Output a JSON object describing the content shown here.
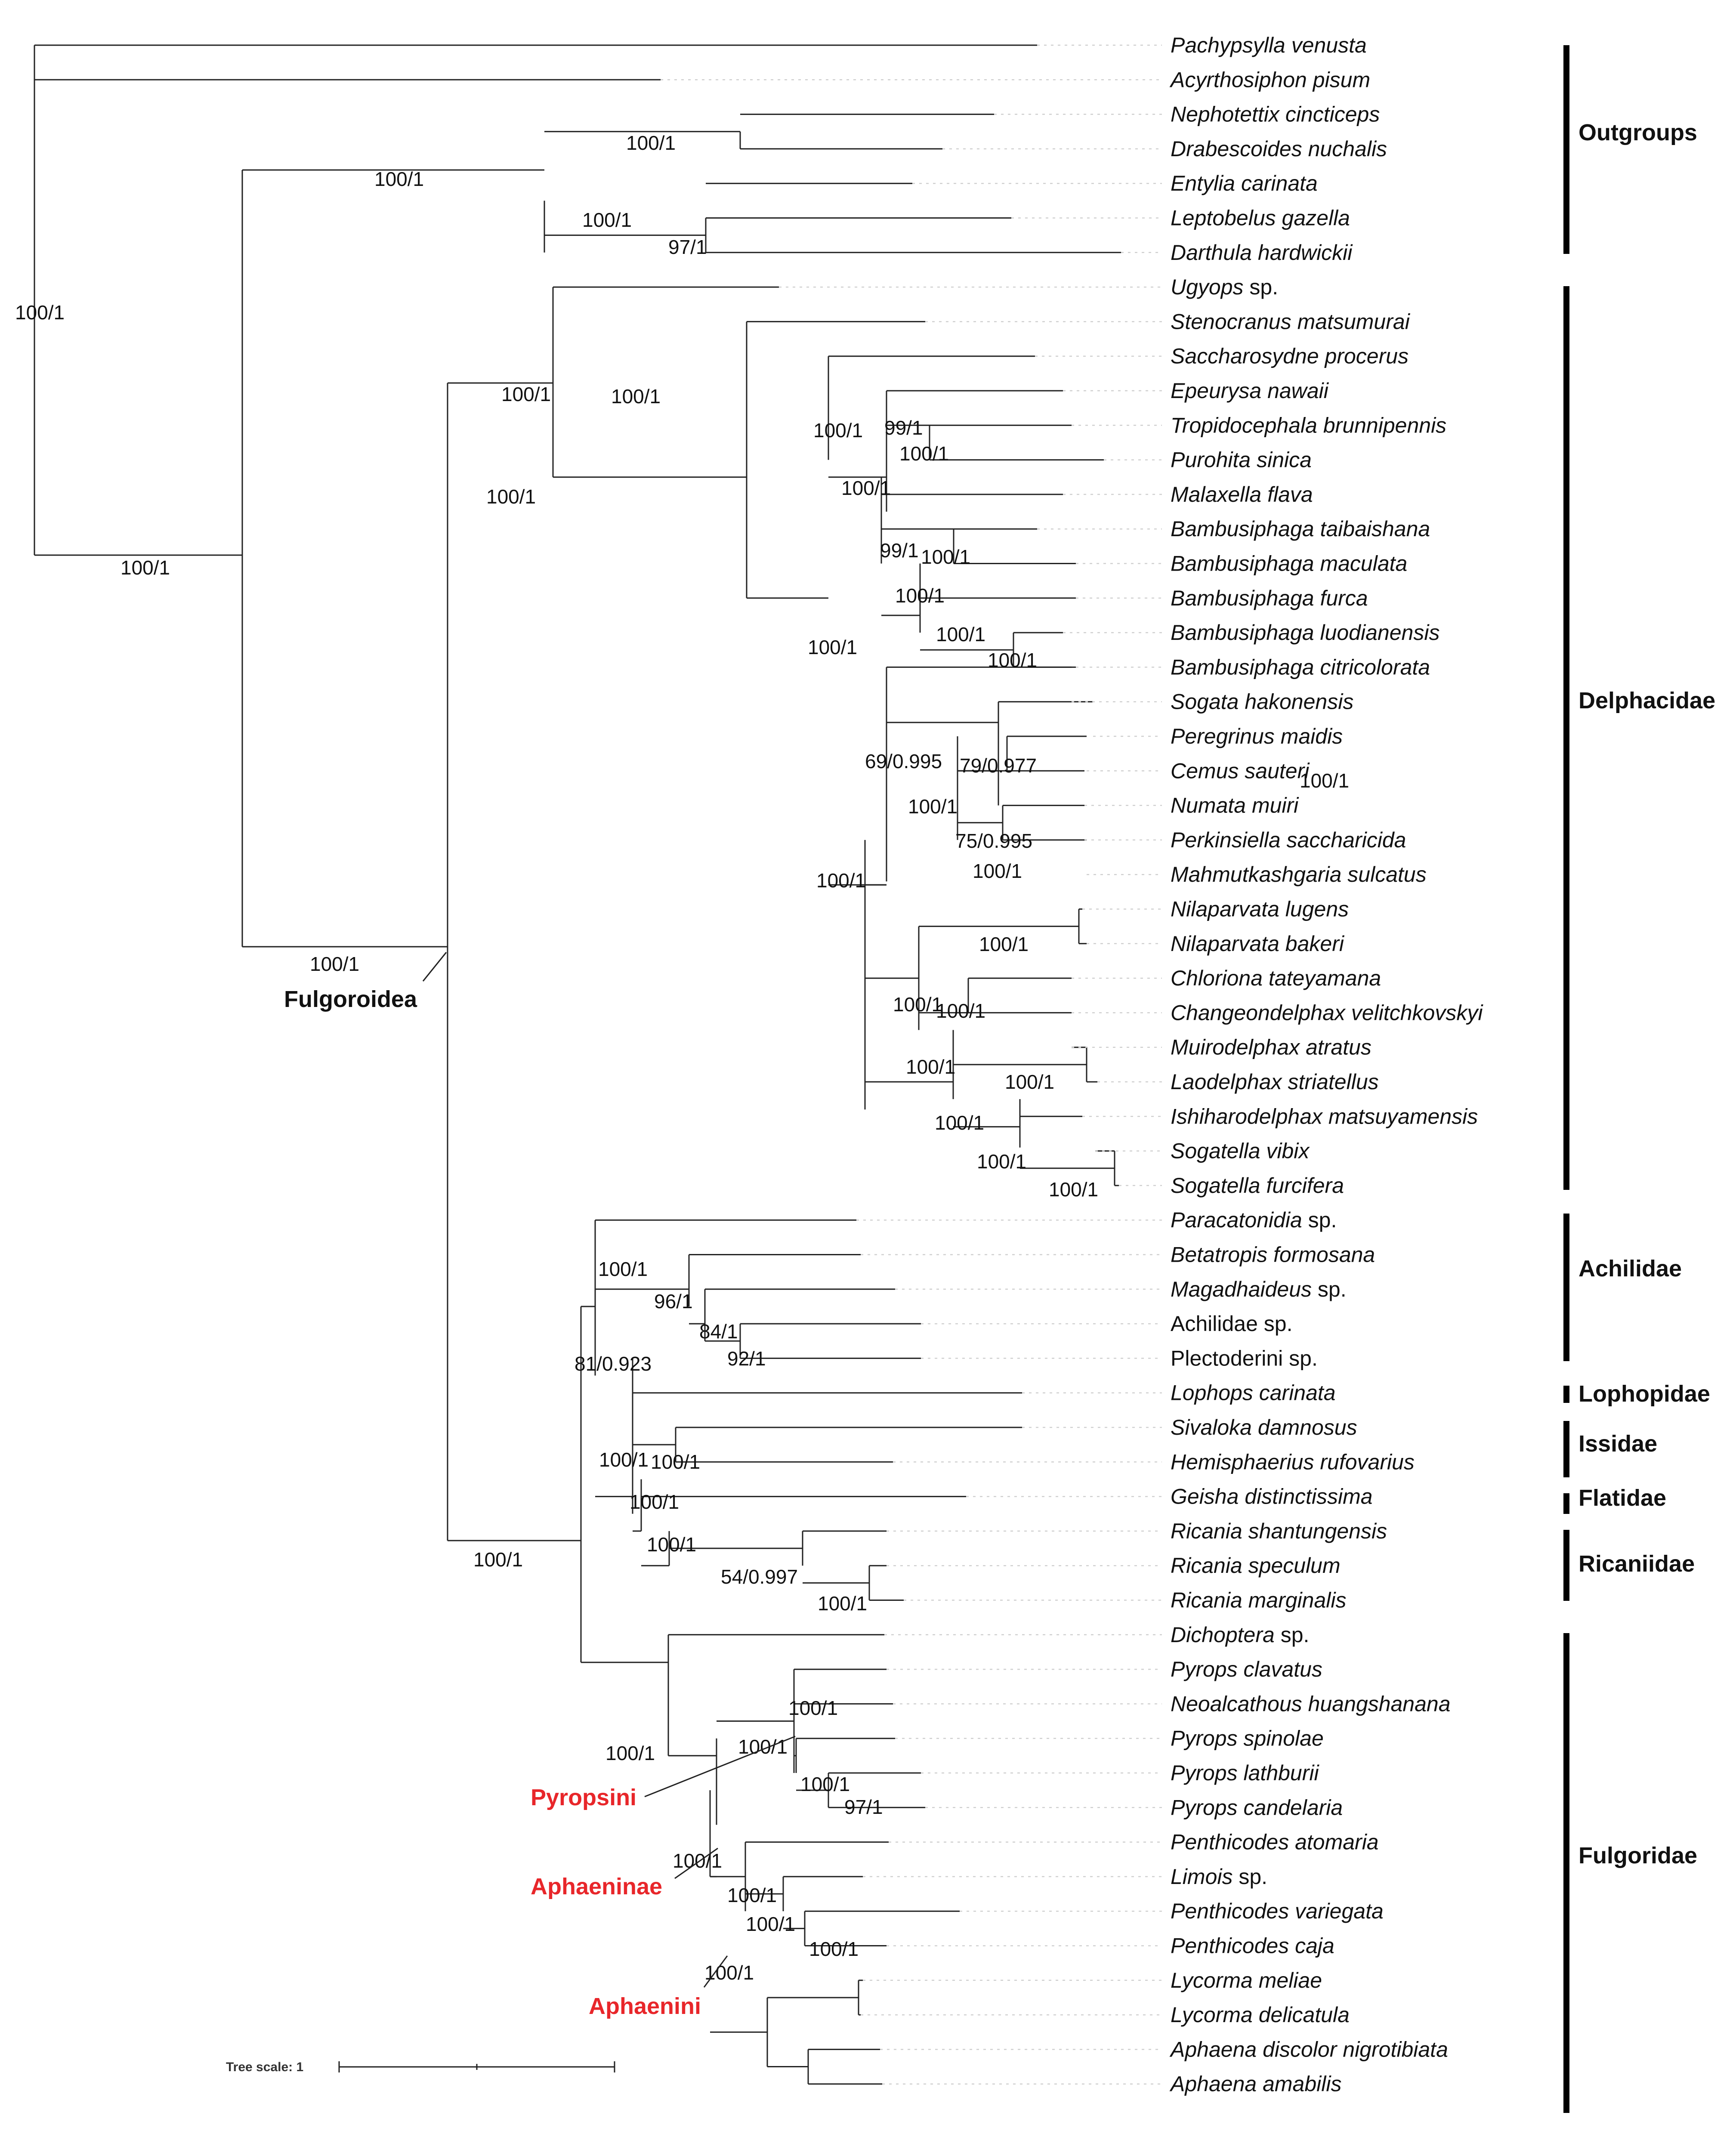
{
  "tree_scale": {
    "label": "Tree scale: 1"
  },
  "taxa": [
    {
      "genus": "Pachypsylla venusta",
      "suffix": ""
    },
    {
      "genus": "Acyrthosiphon pisum",
      "suffix": ""
    },
    {
      "genus": "Nephotettix cincticeps",
      "suffix": ""
    },
    {
      "genus": "Drabescoides nuchalis",
      "suffix": ""
    },
    {
      "genus": "Entylia carinata",
      "suffix": ""
    },
    {
      "genus": "Leptobelus gazella",
      "suffix": ""
    },
    {
      "genus": "Darthula hardwickii",
      "suffix": ""
    },
    {
      "genus": "Ugyops",
      "suffix": " sp."
    },
    {
      "genus": "Stenocranus matsumurai",
      "suffix": ""
    },
    {
      "genus": "Saccharosydne procerus",
      "suffix": ""
    },
    {
      "genus": "Epeurysa nawaii",
      "suffix": ""
    },
    {
      "genus": "Tropidocephala brunnipennis",
      "suffix": ""
    },
    {
      "genus": "Purohita sinica",
      "suffix": ""
    },
    {
      "genus": "Malaxella flava",
      "suffix": ""
    },
    {
      "genus": "Bambusiphaga taibaishana",
      "suffix": ""
    },
    {
      "genus": "Bambusiphaga maculata",
      "suffix": ""
    },
    {
      "genus": "Bambusiphaga furca",
      "suffix": ""
    },
    {
      "genus": "Bambusiphaga luodianensis",
      "suffix": ""
    },
    {
      "genus": "Bambusiphaga citricolorata",
      "suffix": ""
    },
    {
      "genus": "Sogata hakonensis",
      "suffix": ""
    },
    {
      "genus": "Peregrinus maidis",
      "suffix": ""
    },
    {
      "genus": "Cemus sauteri",
      "suffix": ""
    },
    {
      "genus": "Numata muiri",
      "suffix": ""
    },
    {
      "genus": "Perkinsiella saccharicida",
      "suffix": ""
    },
    {
      "genus": "Mahmutkashgaria sulcatus",
      "suffix": ""
    },
    {
      "genus": "Nilaparvata lugens",
      "suffix": ""
    },
    {
      "genus": "Nilaparvata bakeri",
      "suffix": ""
    },
    {
      "genus": "Chloriona tateyamana",
      "suffix": ""
    },
    {
      "genus": "Changeondelphax velitchkovskyi",
      "suffix": ""
    },
    {
      "genus": "Muirodelphax atratus",
      "suffix": ""
    },
    {
      "genus": "Laodelphax striatellus",
      "suffix": ""
    },
    {
      "genus": "Ishiharodelphax matsuyamensis",
      "suffix": ""
    },
    {
      "genus": "Sogatella vibix",
      "suffix": ""
    },
    {
      "genus": "Sogatella furcifera",
      "suffix": ""
    },
    {
      "genus": "Paracatonidia",
      "suffix": " sp."
    },
    {
      "genus": "Betatropis formosana",
      "suffix": ""
    },
    {
      "genus": "Magadhaideus",
      "suffix": " sp."
    },
    {
      "genus": "",
      "suffix": "Achilidae sp."
    },
    {
      "genus": "",
      "suffix": "Plectoderini sp."
    },
    {
      "genus": "Lophops carinata",
      "suffix": ""
    },
    {
      "genus": "Sivaloka damnosus",
      "suffix": ""
    },
    {
      "genus": "Hemisphaerius rufovarius",
      "suffix": ""
    },
    {
      "genus": "Geisha distinctissima",
      "suffix": ""
    },
    {
      "genus": "Ricania shantungensis",
      "suffix": ""
    },
    {
      "genus": "Ricania speculum",
      "suffix": ""
    },
    {
      "genus": "Ricania marginalis",
      "suffix": ""
    },
    {
      "genus": "Dichoptera",
      "suffix": " sp."
    },
    {
      "genus": "Pyrops clavatus",
      "suffix": ""
    },
    {
      "genus": "Neoalcathous huangshanana",
      "suffix": ""
    },
    {
      "genus": "Pyrops spinolae",
      "suffix": ""
    },
    {
      "genus": "Pyrops lathburii",
      "suffix": ""
    },
    {
      "genus": "Pyrops candelaria",
      "suffix": ""
    },
    {
      "genus": "Penthicodes atomaria",
      "suffix": ""
    },
    {
      "genus": "Limois",
      "suffix": " sp."
    },
    {
      "genus": "Penthicodes variegata",
      "suffix": ""
    },
    {
      "genus": "Penthicodes caja",
      "suffix": ""
    },
    {
      "genus": "Lycorma meliae",
      "suffix": ""
    },
    {
      "genus": "Lycorma delicatula",
      "suffix": ""
    },
    {
      "genus": "Aphaena discolor nigrotibiata",
      "suffix": ""
    },
    {
      "genus": "Aphaena amabilis",
      "suffix": ""
    }
  ],
  "groups": [
    "Outgroups",
    "Delphacidae",
    "Achilidae",
    "Lophopidae",
    "Issidae",
    "Flatidae",
    "Ricaniidae",
    "Fulgoridae"
  ],
  "clade_labels": {
    "fulgoroidea": "Fulgoroidea",
    "pyropsini": "Pyropsini",
    "aphaeninae": "Aphaeninae",
    "aphaenini": "Aphaenini"
  },
  "colors": {
    "highlight": "#e8262a",
    "branch": "#222222"
  },
  "supports": [
    "100/1",
    "100/1",
    "100/1",
    "100/1",
    "100/1",
    "97/1",
    "100/1",
    "100/1",
    "100/1",
    "100/1",
    "99/1",
    "100/1",
    "100/1",
    "99/1",
    "100/1",
    "100/1",
    "100/1",
    "100/1",
    "100/1",
    "69/0.995",
    "79/0.977",
    "100/1",
    "75/0.995",
    "100/1",
    "100/1",
    "100/1",
    "100/1",
    "100/1",
    "100/1",
    "100/1",
    "100/1",
    "100/1",
    "100/1",
    "100/1",
    "100/1",
    "100/1",
    "81/0.923",
    "100/1",
    "96/1",
    "84/1",
    "92/1",
    "100/1",
    "100/1",
    "100/1",
    "100/1",
    "54/0.997",
    "100/1",
    "100/1",
    "100/1",
    "100/1",
    "97/1",
    "100/1",
    "100/1",
    "100/1",
    "100/1",
    "100/1",
    "100/1"
  ]
}
